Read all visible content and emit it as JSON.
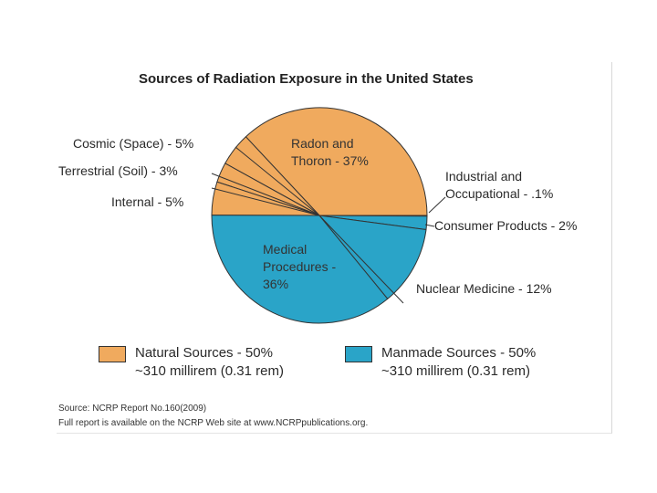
{
  "chart_data": {
    "type": "pie",
    "title": "Sources of Radiation Exposure in the United States",
    "colors": {
      "natural": "#f0aa5e",
      "manmade": "#2aa4c8",
      "stroke": "#333333"
    },
    "slices": [
      {
        "name": "Radon and Thoron",
        "value": 37,
        "group": "natural",
        "label_lines": [
          "Radon and",
          "Thoron - 37%"
        ]
      },
      {
        "name": "Cosmic (Space)",
        "value": 5,
        "group": "natural",
        "label_lines": [
          "Cosmic (Space) - 5%"
        ]
      },
      {
        "name": "Terrestrial (Soil)",
        "value": 3,
        "group": "natural",
        "label_lines": [
          "Terrestrial (Soil) - 3%"
        ]
      },
      {
        "name": "Internal",
        "value": 5,
        "group": "natural",
        "label_lines": [
          "Internal - 5%"
        ]
      },
      {
        "name": "Medical Procedures",
        "value": 36,
        "group": "manmade",
        "label_lines": [
          "Medical",
          "Procedures -",
          "36%"
        ]
      },
      {
        "name": "Nuclear Medicine",
        "value": 12,
        "group": "manmade",
        "label_lines": [
          "Nuclear Medicine - 12%"
        ]
      },
      {
        "name": "Consumer Products",
        "value": 2,
        "group": "manmade",
        "label_lines": [
          "Consumer Products - 2%"
        ]
      },
      {
        "name": "Industrial and Occupational",
        "value": 0.1,
        "group": "manmade",
        "label_lines": [
          "Industrial and",
          "Occupational - .1%"
        ]
      }
    ],
    "legend": [
      {
        "group": "natural",
        "lines": [
          "Natural Sources - 50%",
          "~310 millirem (0.31 rem)"
        ]
      },
      {
        "group": "manmade",
        "lines": [
          "Manmade Sources - 50%",
          "~310 millirem (0.31 rem)"
        ]
      }
    ],
    "source_lines": [
      "Source: NCRP Report No.160(2009)",
      "Full report is available on the NCRP Web site at www.NCRPpublications.org."
    ]
  }
}
